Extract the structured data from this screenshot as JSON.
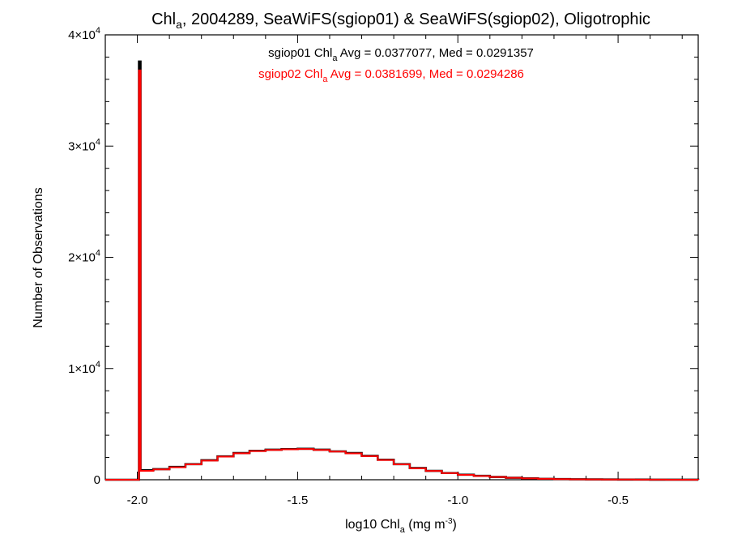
{
  "chart_data": {
    "type": "histogram",
    "title": {
      "main": "Chl",
      "sub": "a",
      "rest": ", 2004289, SeaWiFS(sgiop01) & SeaWiFS(sgiop02), Oligotrophic"
    },
    "xlabel": {
      "main": "log10 Chl",
      "sub": "a",
      "rest": " (mg m",
      "sup": "-3",
      "end": ")"
    },
    "ylabel": "Number of Observations",
    "xlim": [
      -2.1,
      -0.25
    ],
    "ylim": [
      0,
      40000
    ],
    "x_ticks": [
      {
        "value": -2.0,
        "label": "-2.0"
      },
      {
        "value": -1.5,
        "label": "-1.5"
      },
      {
        "value": -1.0,
        "label": "-1.0"
      },
      {
        "value": -0.5,
        "label": "-0.5"
      }
    ],
    "y_ticks": [
      {
        "value": 0,
        "base": "0",
        "exp": ""
      },
      {
        "value": 10000,
        "base": "1×10",
        "exp": "4"
      },
      {
        "value": 20000,
        "base": "2×10",
        "exp": "4"
      },
      {
        "value": 30000,
        "base": "3×10",
        "exp": "4"
      },
      {
        "value": 40000,
        "base": "4×10",
        "exp": "4"
      }
    ],
    "annotations": [
      {
        "series": "sgiop01",
        "color": "#000000",
        "pre": "sgiop01 Chl",
        "sub": "a",
        "post": " Avg = 0.0377077, Med = 0.0291357"
      },
      {
        "series": "sgiop02",
        "color": "#ff0000",
        "pre": "sgiop02 Chl",
        "sub": "a",
        "post": " Avg = 0.0381699, Med = 0.0294286"
      }
    ],
    "series": [
      {
        "id": "sgiop01",
        "color": "#000000",
        "points": [
          [
            -2.1,
            0
          ],
          [
            -2.005,
            0
          ],
          [
            -1.995,
            37600
          ],
          [
            -1.99,
            850
          ],
          [
            -1.95,
            950
          ],
          [
            -1.9,
            1150
          ],
          [
            -1.85,
            1400
          ],
          [
            -1.8,
            1750
          ],
          [
            -1.75,
            2100
          ],
          [
            -1.7,
            2400
          ],
          [
            -1.65,
            2600
          ],
          [
            -1.6,
            2700
          ],
          [
            -1.55,
            2750
          ],
          [
            -1.5,
            2780
          ],
          [
            -1.45,
            2700
          ],
          [
            -1.4,
            2550
          ],
          [
            -1.35,
            2400
          ],
          [
            -1.3,
            2150
          ],
          [
            -1.25,
            1800
          ],
          [
            -1.2,
            1400
          ],
          [
            -1.15,
            1050
          ],
          [
            -1.1,
            800
          ],
          [
            -1.05,
            600
          ],
          [
            -1.0,
            450
          ],
          [
            -0.95,
            350
          ],
          [
            -0.9,
            250
          ],
          [
            -0.85,
            180
          ],
          [
            -0.8,
            120
          ],
          [
            -0.75,
            80
          ],
          [
            -0.7,
            60
          ],
          [
            -0.65,
            40
          ],
          [
            -0.6,
            30
          ],
          [
            -0.55,
            20
          ],
          [
            -0.5,
            15
          ],
          [
            -0.45,
            10
          ],
          [
            -0.4,
            5
          ],
          [
            -0.35,
            3
          ],
          [
            -0.3,
            2
          ],
          [
            -0.25,
            0
          ]
        ]
      },
      {
        "id": "sgiop02",
        "color": "#ff0000",
        "points": [
          [
            -2.1,
            0
          ],
          [
            -2.005,
            0
          ],
          [
            -1.995,
            36800
          ],
          [
            -1.99,
            800
          ],
          [
            -1.95,
            930
          ],
          [
            -1.9,
            1120
          ],
          [
            -1.85,
            1380
          ],
          [
            -1.8,
            1720
          ],
          [
            -1.75,
            2080
          ],
          [
            -1.7,
            2380
          ],
          [
            -1.65,
            2580
          ],
          [
            -1.6,
            2680
          ],
          [
            -1.55,
            2730
          ],
          [
            -1.5,
            2760
          ],
          [
            -1.45,
            2680
          ],
          [
            -1.4,
            2530
          ],
          [
            -1.35,
            2370
          ],
          [
            -1.3,
            2120
          ],
          [
            -1.25,
            1780
          ],
          [
            -1.2,
            1380
          ],
          [
            -1.15,
            1030
          ],
          [
            -1.1,
            790
          ],
          [
            -1.05,
            590
          ],
          [
            -1.0,
            440
          ],
          [
            -0.95,
            340
          ],
          [
            -0.9,
            245
          ],
          [
            -0.85,
            175
          ],
          [
            -0.8,
            118
          ],
          [
            -0.75,
            78
          ],
          [
            -0.7,
            58
          ],
          [
            -0.65,
            38
          ],
          [
            -0.6,
            28
          ],
          [
            -0.55,
            19
          ],
          [
            -0.5,
            14
          ],
          [
            -0.45,
            9
          ],
          [
            -0.4,
            5
          ],
          [
            -0.35,
            3
          ],
          [
            -0.3,
            2
          ],
          [
            -0.25,
            0
          ]
        ]
      }
    ]
  }
}
